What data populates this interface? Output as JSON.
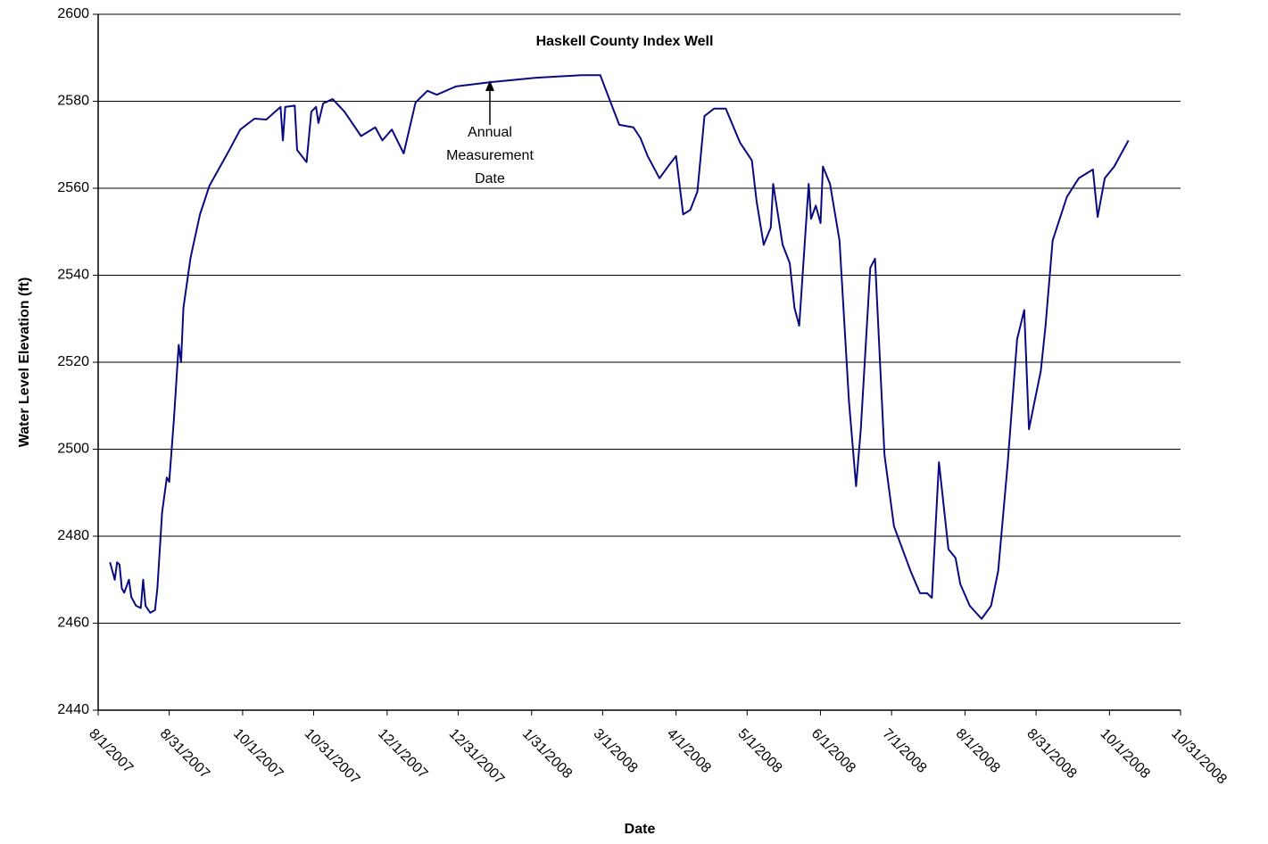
{
  "chart_data": {
    "type": "line",
    "title": "Haskell County Index Well",
    "xlabel": "Date",
    "ylabel": "Water Level Elevation (ft)",
    "annotation": [
      "Annual",
      "Measurement",
      "Date"
    ],
    "color": "#0a0a80",
    "grid": true,
    "ylim": [
      2440,
      2600
    ],
    "yticks": [
      2440,
      2460,
      2480,
      2500,
      2520,
      2540,
      2560,
      2580,
      2600
    ],
    "xlim": [
      "8/1/2007",
      "10/31/2008"
    ],
    "xticks": [
      "8/1/2007",
      "8/31/2007",
      "10/1/2007",
      "10/31/2007",
      "12/1/2007",
      "12/31/2007",
      "1/31/2008",
      "3/1/2008",
      "4/1/2008",
      "5/1/2008",
      "6/1/2008",
      "7/1/2008",
      "8/1/2008",
      "8/31/2008",
      "10/1/2008",
      "10/31/2008"
    ],
    "x": [
      "8/6/2007",
      "8/8/2007",
      "8/9/2007",
      "8/10/2007",
      "8/11/2007",
      "8/12/2007",
      "8/14/2007",
      "8/15/2007",
      "8/17/2007",
      "8/19/2007",
      "8/20/2007",
      "8/21/2007",
      "8/23/2007",
      "8/25/2007",
      "8/26/2007",
      "8/28/2007",
      "8/30/2007",
      "8/31/2007",
      "9/2/2007",
      "9/4/2007",
      "9/5/2007",
      "9/6/2007",
      "9/9/2007",
      "9/13/2007",
      "9/17/2007",
      "9/25/2007",
      "9/30/2007",
      "10/6/2007",
      "10/11/2007",
      "10/17/2007",
      "10/18/2007",
      "10/19/2007",
      "10/23/2007",
      "10/24/2007",
      "10/28/2007",
      "10/30/2007",
      "11/1/2007",
      "11/2/2007",
      "11/4/2007",
      "11/8/2007",
      "11/13/2007",
      "11/20/2007",
      "11/26/2007",
      "11/29/2007",
      "12/3/2007",
      "12/8/2007",
      "12/13/2007",
      "12/18/2007",
      "12/22/2007",
      "12/30/2007",
      "1/14/2008",
      "2/2/2008",
      "2/21/2008",
      "2/29/2008",
      "3/3/2008",
      "3/8/2008",
      "3/14/2008",
      "3/17/2008",
      "3/20/2008",
      "3/25/2008",
      "3/29/2008",
      "4/1/2008",
      "4/4/2008",
      "4/7/2008",
      "4/10/2008",
      "4/13/2008",
      "4/17/2008",
      "4/22/2008",
      "4/28/2008",
      "5/3/2008",
      "5/5/2008",
      "5/8/2008",
      "5/11/2008",
      "5/12/2008",
      "5/16/2008",
      "5/19/2008",
      "5/21/2008",
      "5/23/2008",
      "5/27/2008",
      "5/28/2008",
      "5/30/2008",
      "6/1/2008",
      "6/2/2008",
      "6/5/2008",
      "6/9/2008",
      "6/13/2008",
      "6/16/2008",
      "6/18/2008",
      "6/22/2008",
      "6/24/2008",
      "6/28/2008",
      "7/2/2008",
      "7/9/2008",
      "7/13/2008",
      "7/16/2008",
      "7/18/2008",
      "7/21/2008",
      "7/25/2008",
      "7/28/2008",
      "7/30/2008",
      "8/3/2008",
      "8/8/2008",
      "8/12/2008",
      "8/15/2008",
      "8/19/2008",
      "8/23/2008",
      "8/26/2008",
      "8/28/2008",
      "8/30/2008",
      "9/2/2008",
      "9/4/2008",
      "9/7/2008",
      "9/13/2008",
      "9/18/2008",
      "9/24/2008",
      "9/26/2008",
      "9/29/2008",
      "10/3/2008",
      "10/9/2008"
    ],
    "values": [
      2474,
      2470,
      2474,
      2473.5,
      2468,
      2467,
      2470,
      2466,
      2464,
      2463.5,
      2470,
      2464,
      2462.4,
      2463,
      2468,
      2485.5,
      2493.5,
      2492.5,
      2507,
      2524,
      2520,
      2532.5,
      2544,
      2554,
      2560.6,
      2568.4,
      2573.5,
      2576,
      2575.8,
      2578.7,
      2571,
      2578.7,
      2579,
      2568.8,
      2566,
      2577.6,
      2578.7,
      2575,
      2579.5,
      2580.5,
      2577.6,
      2572,
      2574,
      2571,
      2573.5,
      2568,
      2579.7,
      2582.4,
      2581.5,
      2583.4,
      2584.4,
      2585.4,
      2586,
      2586,
      2581.7,
      2574.6,
      2574,
      2571.5,
      2567.4,
      2562.3,
      2565.3,
      2567.4,
      2554,
      2555,
      2559.2,
      2576.6,
      2578.3,
      2578.3,
      2570.5,
      2566.4,
      2557,
      2547,
      2551,
      2561,
      2547,
      2542.8,
      2532.5,
      2528.4,
      2561,
      2553,
      2556,
      2552,
      2565,
      2561,
      2548,
      2511,
      2491.5,
      2504.6,
      2541.7,
      2543.8,
      2498.7,
      2482.3,
      2472,
      2466.9,
      2466.9,
      2465.8,
      2497,
      2477,
      2475,
      2469,
      2464,
      2461,
      2464,
      2472,
      2496.6,
      2525.3,
      2532,
      2504.6,
      2510,
      2518,
      2528.4,
      2548,
      2558,
      2562.3,
      2564.3,
      2553.4,
      2562.3,
      2565,
      2571
    ]
  }
}
